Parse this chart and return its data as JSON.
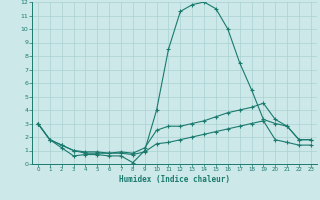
{
  "xlabel": "Humidex (Indice chaleur)",
  "x": [
    0,
    1,
    2,
    3,
    4,
    5,
    6,
    7,
    8,
    9,
    10,
    11,
    12,
    13,
    14,
    15,
    16,
    17,
    18,
    19,
    20,
    21,
    22,
    23
  ],
  "line_max": [
    3.0,
    1.8,
    1.2,
    0.6,
    0.7,
    0.7,
    0.6,
    0.6,
    0.1,
    1.0,
    4.0,
    8.5,
    11.3,
    11.8,
    12.0,
    11.5,
    10.0,
    7.5,
    5.5,
    3.3,
    3.0,
    2.8,
    1.8,
    1.8
  ],
  "line_mean": [
    3.0,
    1.8,
    1.4,
    1.0,
    0.9,
    0.9,
    0.8,
    0.9,
    0.8,
    1.2,
    2.5,
    2.8,
    2.8,
    3.0,
    3.2,
    3.5,
    3.8,
    4.0,
    4.2,
    4.5,
    3.3,
    2.8,
    1.8,
    1.8
  ],
  "line_min": [
    3.0,
    1.8,
    1.4,
    1.0,
    0.8,
    0.8,
    0.8,
    0.8,
    0.7,
    0.9,
    1.5,
    1.6,
    1.8,
    2.0,
    2.2,
    2.4,
    2.6,
    2.8,
    3.0,
    3.2,
    1.8,
    1.6,
    1.4,
    1.4
  ],
  "line_color": "#1a7a6e",
  "bg_color": "#cce8e8",
  "grid_color": "#aad0d0",
  "ylim": [
    0,
    12
  ],
  "xlim": [
    -0.5,
    23.5
  ],
  "yticks": [
    0,
    1,
    2,
    3,
    4,
    5,
    6,
    7,
    8,
    9,
    10,
    11,
    12
  ],
  "xticks": [
    0,
    1,
    2,
    3,
    4,
    5,
    6,
    7,
    8,
    9,
    10,
    11,
    12,
    13,
    14,
    15,
    16,
    17,
    18,
    19,
    20,
    21,
    22,
    23
  ]
}
